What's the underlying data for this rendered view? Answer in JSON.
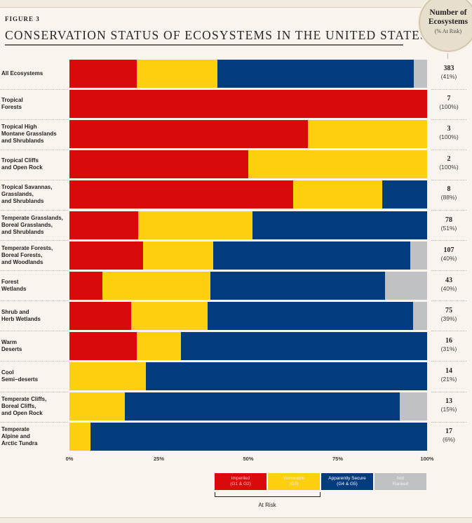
{
  "figure_label": "FIGURE 3",
  "title": "CONSERVATION STATUS OF ECOSYSTEMS IN THE UNITED STATES",
  "badge": {
    "title_line1": "Number of",
    "title_line2": "Ecosystems",
    "subtitle": "(% At Risk)"
  },
  "colors": {
    "imperiled": "#d90a0a",
    "vulnerable": "#fccf0f",
    "secure": "#033b7f",
    "not_ranked": "#c0c1c5"
  },
  "chart_data": {
    "type": "bar",
    "orientation": "horizontal-stacked-100",
    "title": "Conservation Status of Ecosystems in the United States",
    "xlabel": "",
    "ylabel": "",
    "xlim": [
      0,
      100
    ],
    "x_ticks": [
      "0%",
      "25%",
      "50%",
      "75%",
      "100%"
    ],
    "legend": {
      "placement": "bottom-right",
      "entries": [
        {
          "key": "imperiled",
          "line1": "Imperiled",
          "line2": "(G1 & G2)"
        },
        {
          "key": "vulnerable",
          "line1": "Vulnerable",
          "line2": "(G3)"
        },
        {
          "key": "secure",
          "line1": "Apparently Secure",
          "line2": "(G4 & G5)"
        },
        {
          "key": "not_ranked",
          "line1": "Not",
          "line2": "Ranked"
        }
      ],
      "bracket_label": "At Risk"
    },
    "series_keys": [
      "imperiled",
      "vulnerable",
      "secure",
      "not_ranked"
    ],
    "categories": [
      {
        "label": [
          "All Ecosystems"
        ],
        "count": "383",
        "pct_at_risk": "(41%)",
        "values": [
          18.8,
          22.6,
          54.9,
          3.7
        ]
      },
      {
        "label": [
          "Tropical",
          "Forests"
        ],
        "count": "7",
        "pct_at_risk": "(100%)",
        "values": [
          100,
          0,
          0,
          0
        ]
      },
      {
        "label": [
          "Tropical High",
          "Montane Grasslands",
          "and Shrublands"
        ],
        "count": "3",
        "pct_at_risk": "(100%)",
        "values": [
          66.7,
          33.3,
          0,
          0
        ]
      },
      {
        "label": [
          "Tropical Cliffs",
          "and Open Rock"
        ],
        "count": "2",
        "pct_at_risk": "(100%)",
        "values": [
          50,
          50,
          0,
          0
        ]
      },
      {
        "label": [
          "Tropical Savannas,",
          "Grasslands,",
          "and Shrublands"
        ],
        "count": "8",
        "pct_at_risk": "(88%)",
        "values": [
          62.5,
          25,
          12.5,
          0
        ]
      },
      {
        "label": [
          "Temperate Grasslands,",
          "Boreal Grasslands,",
          "and Shrublands"
        ],
        "count": "78",
        "pct_at_risk": "(51%)",
        "values": [
          19.2,
          32.0,
          48.8,
          0
        ]
      },
      {
        "label": [
          "Temperate Forests,",
          "Boreal Forests,",
          "and Woodlands"
        ],
        "count": "107",
        "pct_at_risk": "(40%)",
        "values": [
          20.6,
          19.6,
          55.1,
          4.7
        ]
      },
      {
        "label": [
          "Forest",
          "Wetlands"
        ],
        "count": "43",
        "pct_at_risk": "(40%)",
        "values": [
          9.3,
          30.2,
          48.8,
          11.7
        ]
      },
      {
        "label": [
          "Shrub and",
          "Herb Wetlands"
        ],
        "count": "75",
        "pct_at_risk": "(39%)",
        "values": [
          17.3,
          21.4,
          57.3,
          4.0
        ]
      },
      {
        "label": [
          "Warm",
          "Deserts"
        ],
        "count": "16",
        "pct_at_risk": "(31%)",
        "values": [
          18.75,
          12.5,
          68.75,
          0
        ]
      },
      {
        "label": [
          "Cool",
          "Semi–deserts"
        ],
        "count": "14",
        "pct_at_risk": "(21%)",
        "values": [
          0,
          21.4,
          78.6,
          0
        ]
      },
      {
        "label": [
          "Temperate Cliffs,",
          "Boreal Cliffs,",
          "and Open Rock"
        ],
        "count": "13",
        "pct_at_risk": "(15%)",
        "values": [
          0,
          15.4,
          76.9,
          7.7
        ]
      },
      {
        "label": [
          "Temperate",
          "Alpine and",
          "Arctic Tundra"
        ],
        "count": "17",
        "pct_at_risk": "(6%)",
        "values": [
          0,
          5.9,
          94.1,
          0
        ]
      }
    ]
  }
}
